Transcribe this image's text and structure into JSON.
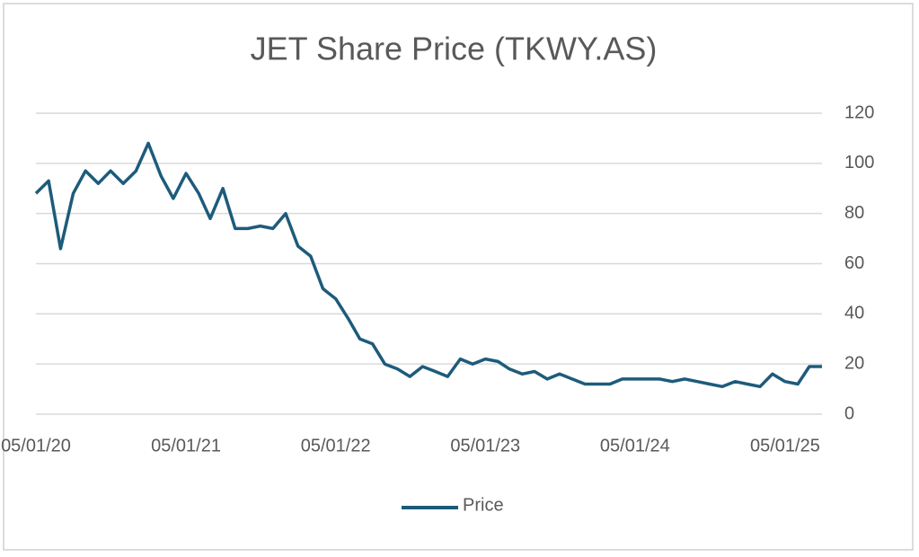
{
  "chart_data": {
    "type": "line",
    "title": "JET Share Price (TKWY.AS)",
    "x": [
      "05/01/20",
      "05/02/20",
      "05/03/20",
      "05/04/20",
      "05/05/20",
      "05/06/20",
      "05/07/20",
      "05/08/20",
      "05/09/20",
      "05/10/20",
      "05/11/20",
      "05/12/20",
      "05/01/21",
      "05/02/21",
      "05/03/21",
      "05/04/21",
      "05/05/21",
      "05/06/21",
      "05/07/21",
      "05/08/21",
      "05/09/21",
      "05/10/21",
      "05/11/21",
      "05/12/21",
      "05/01/22",
      "05/02/22",
      "05/03/22",
      "05/04/22",
      "05/05/22",
      "05/06/22",
      "05/07/22",
      "05/08/22",
      "05/09/22",
      "05/10/22",
      "05/11/22",
      "05/12/22",
      "05/01/23",
      "05/02/23",
      "05/03/23",
      "05/04/23",
      "05/05/23",
      "05/06/23",
      "05/07/23",
      "05/08/23",
      "05/09/23",
      "05/10/23",
      "05/11/23",
      "05/12/23",
      "05/01/24",
      "05/02/24",
      "05/03/24",
      "05/04/24",
      "05/05/24",
      "05/06/24",
      "05/07/24",
      "05/08/24",
      "05/09/24",
      "05/10/24",
      "05/11/24",
      "05/12/24",
      "05/01/25",
      "05/02/25",
      "05/03/25",
      "05/04/25"
    ],
    "series": [
      {
        "name": "Price",
        "color": "#1d5b7b",
        "values": [
          88,
          93,
          66,
          88,
          97,
          92,
          97,
          92,
          97,
          108,
          95,
          86,
          96,
          88,
          78,
          90,
          74,
          74,
          75,
          74,
          80,
          67,
          63,
          50,
          46,
          38,
          30,
          28,
          20,
          18,
          15,
          19,
          17,
          15,
          22,
          20,
          22,
          21,
          18,
          16,
          17,
          14,
          16,
          14,
          12,
          12,
          12,
          14,
          14,
          14,
          14,
          13,
          14,
          13,
          12,
          11,
          13,
          12,
          11,
          16,
          13,
          12,
          19,
          19
        ]
      }
    ],
    "xlim": [
      "05/01/20",
      "05/04/25"
    ],
    "xticks": [
      "05/01/20",
      "05/01/21",
      "05/01/22",
      "05/01/23",
      "05/01/24",
      "05/01/25"
    ],
    "ylim": [
      0,
      120
    ],
    "yticks": [
      0,
      20,
      40,
      60,
      80,
      100,
      120
    ],
    "grid": true,
    "legend": "bottom"
  }
}
